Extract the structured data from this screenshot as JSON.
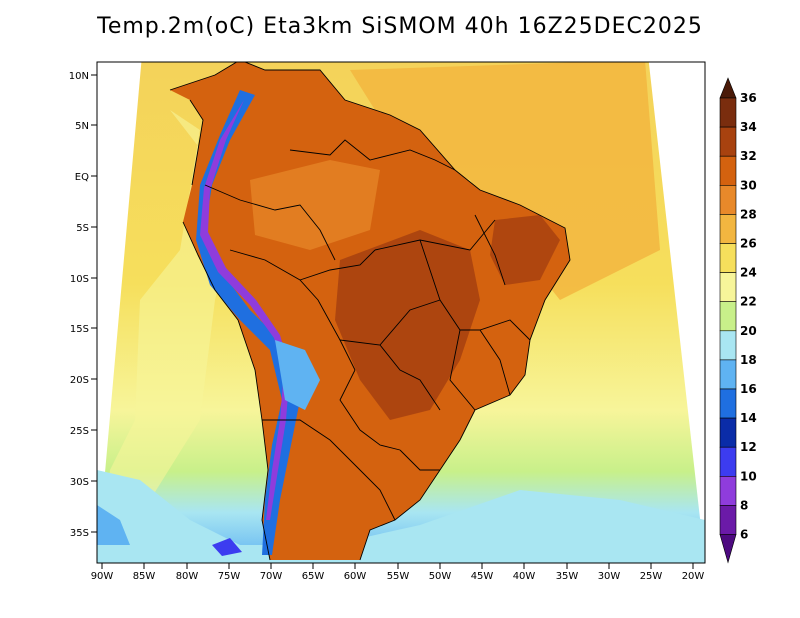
{
  "title": "Temp.2m(oC) Eta3km SiSMOM 40h 16Z25DEC2025",
  "map": {
    "lat_ticks": [
      "10N",
      "5N",
      "EQ",
      "5S",
      "10S",
      "15S",
      "20S",
      "25S",
      "30S",
      "35S"
    ],
    "lon_ticks": [
      "90W",
      "85W",
      "80W",
      "75W",
      "70W",
      "65W",
      "60W",
      "55W",
      "50W",
      "45W",
      "40W",
      "35W",
      "30W",
      "25W",
      "20W"
    ],
    "region": "South America"
  },
  "colorbar": {
    "labels": [
      "36",
      "34",
      "32",
      "30",
      "28",
      "26",
      "24",
      "22",
      "20",
      "18",
      "16",
      "14",
      "12",
      "10",
      "8",
      "6"
    ],
    "colors": [
      "#4a1a08",
      "#7a2d0e",
      "#a8420f",
      "#d4620f",
      "#e8892a",
      "#f2b640",
      "#f6df5c",
      "#f7f59a",
      "#c8f08a",
      "#a9e6f2",
      "#5fb3f2",
      "#1f6fe0",
      "#0a2ca8",
      "#3c3cf0",
      "#8f3cdc",
      "#6b1aa8",
      "#4d0a80"
    ]
  },
  "colors": {
    "ocean_warm": "#f2c84a",
    "ocean_cool": "#a9e6f2",
    "land_hot": "#d4620f"
  }
}
